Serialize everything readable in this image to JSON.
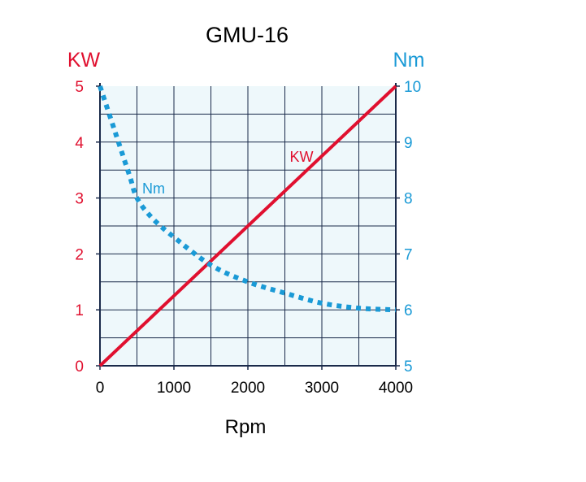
{
  "chart_data": {
    "type": "line",
    "title": "GMU-16",
    "xlabel": "Rpm",
    "ylabel_left": "KW",
    "ylabel_right": "Nm",
    "xlim": [
      0,
      4000
    ],
    "ylim_left": [
      0,
      5
    ],
    "ylim_right": [
      5,
      10
    ],
    "x_ticks": [
      "0",
      "1000",
      "2000",
      "3000",
      "4000"
    ],
    "y_ticks_left": [
      "0",
      "1",
      "2",
      "3",
      "4",
      "5"
    ],
    "y_ticks_right": [
      "5",
      "6",
      "7",
      "8",
      "9",
      "10"
    ],
    "grid": true,
    "colors": {
      "kw": "#e0102f",
      "nm": "#1a9ad6",
      "axis": "#1a2a4a",
      "grid": "#1a2a4a",
      "plot_bg": "#eef8fb"
    },
    "series": [
      {
        "name": "KW",
        "axis": "left",
        "style": "solid",
        "label": "KW",
        "x": [
          0,
          4000
        ],
        "values": [
          0,
          5
        ]
      },
      {
        "name": "Nm",
        "axis": "right",
        "style": "dotted",
        "label": "Nm",
        "x": [
          0,
          200,
          400,
          500,
          700,
          1000,
          1500,
          2000,
          2500,
          3000,
          3500,
          4000
        ],
        "values": [
          10.0,
          9.2,
          8.4,
          8.0,
          7.65,
          7.3,
          6.8,
          6.5,
          6.3,
          6.12,
          6.03,
          6.0
        ]
      }
    ]
  }
}
